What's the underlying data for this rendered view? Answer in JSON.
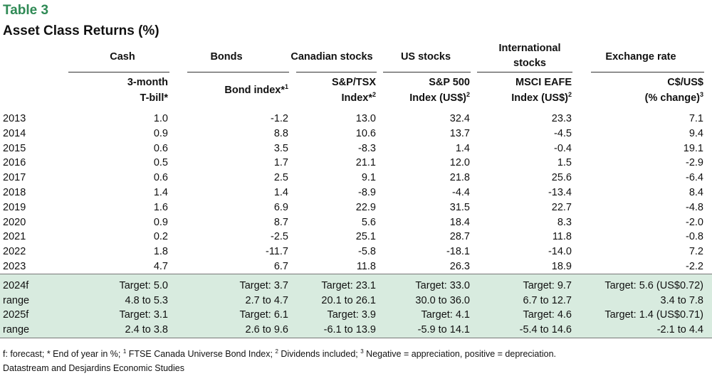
{
  "table_label": "Table 3",
  "title": "Asset Class Returns (%)",
  "groups": [
    "Cash",
    "Bonds",
    "Canadian stocks",
    "US stocks",
    "International stocks",
    "Exchange rate"
  ],
  "subheaders": [
    {
      "line1": "3-month",
      "line2": "T-bill*",
      "sup": ""
    },
    {
      "line1": "",
      "line2": "Bond index*",
      "sup": "1"
    },
    {
      "line1": "S&P/TSX",
      "line2": "Index*",
      "sup": "2"
    },
    {
      "line1": "S&P 500",
      "line2": "Index (US$)",
      "sup": "2"
    },
    {
      "line1": "MSCI EAFE",
      "line2": "Index (US$)",
      "sup": "2"
    },
    {
      "line1": "C$/US$",
      "line2": "(% change)",
      "sup": "3"
    }
  ],
  "rows": [
    {
      "label": "2013",
      "values": [
        "1.0",
        "-1.2",
        "13.0",
        "32.4",
        "23.3",
        "7.1"
      ]
    },
    {
      "label": "2014",
      "values": [
        "0.9",
        "8.8",
        "10.6",
        "13.7",
        "-4.5",
        "9.4"
      ]
    },
    {
      "label": "2015",
      "values": [
        "0.6",
        "3.5",
        "-8.3",
        "1.4",
        "-0.4",
        "19.1"
      ]
    },
    {
      "label": "2016",
      "values": [
        "0.5",
        "1.7",
        "21.1",
        "12.0",
        "1.5",
        "-2.9"
      ]
    },
    {
      "label": "2017",
      "values": [
        "0.6",
        "2.5",
        "9.1",
        "21.8",
        "25.6",
        "-6.4"
      ]
    },
    {
      "label": "2018",
      "values": [
        "1.4",
        "1.4",
        "-8.9",
        "-4.4",
        "-13.4",
        "8.4"
      ]
    },
    {
      "label": "2019",
      "values": [
        "1.6",
        "6.9",
        "22.9",
        "31.5",
        "22.7",
        "-4.8"
      ]
    },
    {
      "label": "2020",
      "values": [
        "0.9",
        "8.7",
        "5.6",
        "18.4",
        "8.3",
        "-2.0"
      ]
    },
    {
      "label": "2021",
      "values": [
        "0.2",
        "-2.5",
        "25.1",
        "28.7",
        "11.8",
        "-0.8"
      ]
    },
    {
      "label": "2022",
      "values": [
        "1.8",
        "-11.7",
        "-5.8",
        "-18.1",
        "-14.0",
        "7.2"
      ]
    },
    {
      "label": "2023",
      "values": [
        "4.7",
        "6.7",
        "11.8",
        "26.3",
        "18.9",
        "-2.2"
      ]
    }
  ],
  "forecast_rows": [
    {
      "label": "2024f",
      "values": [
        "Target: 5.0",
        "Target: 3.7",
        "Target: 23.1",
        "Target: 33.0",
        "Target: 9.7",
        "Target: 5.6 (US$0.72)"
      ]
    },
    {
      "label": "range",
      "values": [
        "4.8 to 5.3",
        "2.7 to 4.7",
        "20.1 to 26.1",
        "30.0 to 36.0",
        "6.7 to 12.7",
        "3.4 to 7.8"
      ]
    },
    {
      "label": "2025f",
      "values": [
        "Target: 3.1",
        "Target: 6.1",
        "Target: 3.9",
        "Target: 4.1",
        "Target: 4.6",
        "Target: 1.4 (US$0.71)"
      ]
    },
    {
      "label": "range",
      "values": [
        "2.4 to 3.8",
        "2.6 to 9.6",
        "-6.1 to 13.9",
        "-5.9 to 14.1",
        "-5.4 to 14.6",
        "-2.1 to 4.4"
      ]
    }
  ],
  "footnote": {
    "part0": "f: forecast; * End of year in %; ",
    "sup1": "1",
    "part1": " FTSE Canada Universe Bond Index; ",
    "sup2": "2",
    "part2": " Dividends included; ",
    "sup3": "3",
    "part3": " Negative = appreciation, positive = depreciation."
  },
  "source": "Datastream and Desjardins Economic Studies",
  "colors": {
    "accent": "#2f8a55",
    "band": "#d8ebdf"
  }
}
